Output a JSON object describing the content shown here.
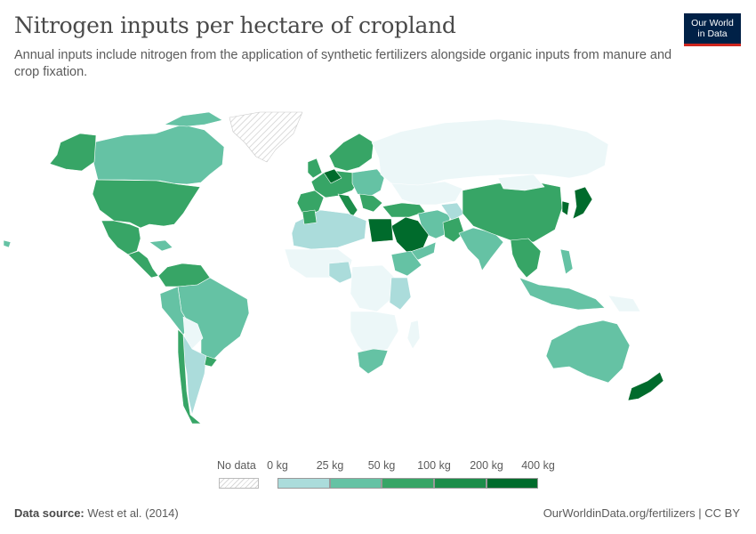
{
  "title": "Nitrogen inputs per hectare of cropland",
  "subtitle": "Annual inputs include nitrogen from the application of synthetic fertilizers alongside organic inputs from manure and crop fixation.",
  "logo": {
    "line1": "Our World",
    "line2": "in Data"
  },
  "legend": {
    "no_data_label": "No data",
    "bins": [
      {
        "label": "0 kg",
        "color": "#ecf7f8"
      },
      {
        "label": "25 kg",
        "color": "#abdcdb"
      },
      {
        "label": "50 kg",
        "color": "#65c2a4"
      },
      {
        "label": "100 kg",
        "color": "#37a566"
      },
      {
        "label": "200 kg",
        "color": "#1c8d4a"
      },
      {
        "label": "400 kg",
        "color": "#006b2c"
      }
    ]
  },
  "footer": {
    "source_label": "Data source:",
    "source_value": "West et al. (2014)",
    "url": "OurWorldinData.org/fertilizers | CC BY"
  }
}
